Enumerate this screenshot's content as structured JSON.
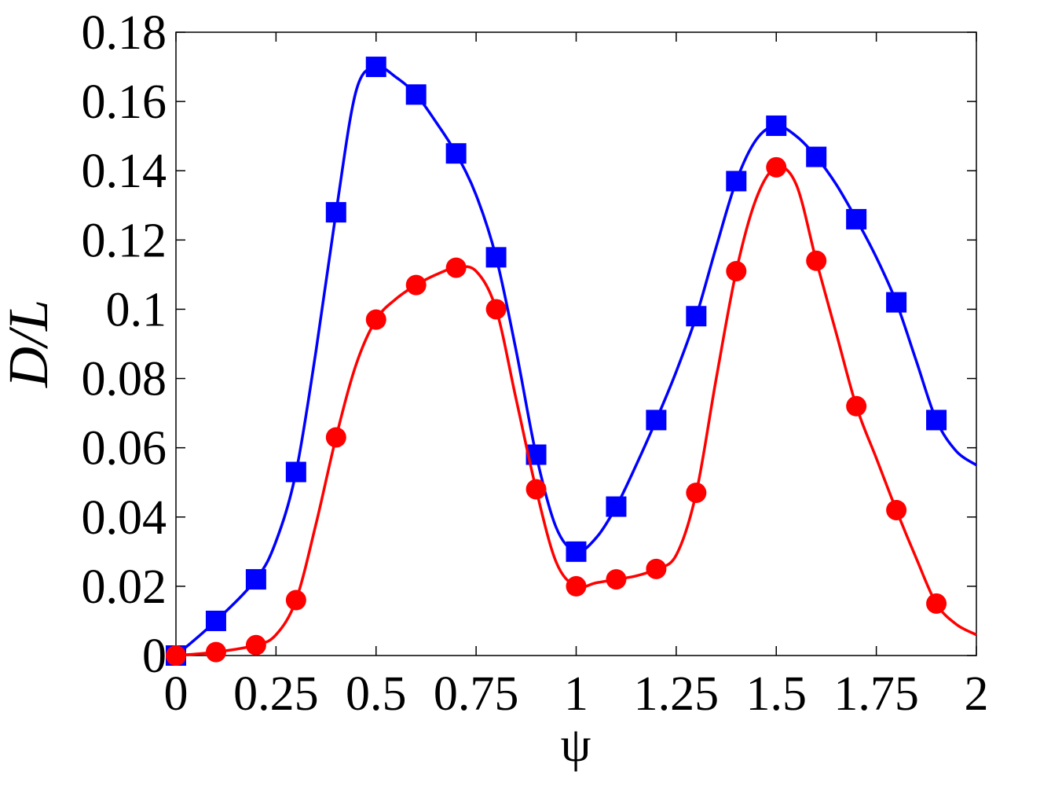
{
  "chart_data": {
    "type": "line",
    "title": "",
    "xlabel": "ψ",
    "ylabel": "D/L",
    "xlim": [
      0,
      2
    ],
    "ylim": [
      0,
      0.18
    ],
    "grid": false,
    "x_ticks": [
      "0",
      "0.25",
      "0.5",
      "0.75",
      "1",
      "1.25",
      "1.5",
      "1.75",
      "2"
    ],
    "y_ticks": [
      "0",
      "0.02",
      "0.04",
      "0.06",
      "0.08",
      "0.1",
      "0.12",
      "0.14",
      "0.16",
      "0.18"
    ],
    "series": [
      {
        "color": "#0000ff",
        "marker": "square",
        "curve": [
          [
            0,
            0
          ],
          [
            0.1,
            0.01
          ],
          [
            0.2,
            0.022
          ],
          [
            0.25,
            0.033
          ],
          [
            0.3,
            0.053
          ],
          [
            0.35,
            0.088
          ],
          [
            0.4,
            0.128
          ],
          [
            0.45,
            0.163
          ],
          [
            0.5,
            0.17
          ],
          [
            0.55,
            0.167
          ],
          [
            0.6,
            0.162
          ],
          [
            0.65,
            0.154
          ],
          [
            0.7,
            0.145
          ],
          [
            0.75,
            0.133
          ],
          [
            0.8,
            0.115
          ],
          [
            0.85,
            0.088
          ],
          [
            0.9,
            0.058
          ],
          [
            0.95,
            0.037
          ],
          [
            1.0,
            0.03
          ],
          [
            1.05,
            0.034
          ],
          [
            1.1,
            0.043
          ],
          [
            1.15,
            0.055
          ],
          [
            1.2,
            0.068
          ],
          [
            1.25,
            0.082
          ],
          [
            1.3,
            0.098
          ],
          [
            1.35,
            0.118
          ],
          [
            1.4,
            0.137
          ],
          [
            1.45,
            0.149
          ],
          [
            1.5,
            0.153
          ],
          [
            1.55,
            0.15
          ],
          [
            1.6,
            0.144
          ],
          [
            1.65,
            0.136
          ],
          [
            1.7,
            0.126
          ],
          [
            1.75,
            0.115
          ],
          [
            1.8,
            0.102
          ],
          [
            1.85,
            0.085
          ],
          [
            1.9,
            0.068
          ],
          [
            1.95,
            0.059
          ],
          [
            2.0,
            0.055
          ]
        ],
        "points": [
          [
            0,
            0
          ],
          [
            0.1,
            0.01
          ],
          [
            0.2,
            0.022
          ],
          [
            0.3,
            0.053
          ],
          [
            0.4,
            0.128
          ],
          [
            0.5,
            0.17
          ],
          [
            0.6,
            0.162
          ],
          [
            0.7,
            0.145
          ],
          [
            0.8,
            0.115
          ],
          [
            0.9,
            0.058
          ],
          [
            1.0,
            0.03
          ],
          [
            1.1,
            0.043
          ],
          [
            1.2,
            0.068
          ],
          [
            1.3,
            0.098
          ],
          [
            1.4,
            0.137
          ],
          [
            1.5,
            0.153
          ],
          [
            1.6,
            0.144
          ],
          [
            1.7,
            0.126
          ],
          [
            1.8,
            0.102
          ],
          [
            1.9,
            0.068
          ]
        ]
      },
      {
        "color": "#ff0000",
        "marker": "circle",
        "curve": [
          [
            0,
            0
          ],
          [
            0.1,
            0.001
          ],
          [
            0.2,
            0.003
          ],
          [
            0.25,
            0.006
          ],
          [
            0.3,
            0.016
          ],
          [
            0.35,
            0.038
          ],
          [
            0.4,
            0.063
          ],
          [
            0.45,
            0.084
          ],
          [
            0.5,
            0.097
          ],
          [
            0.55,
            0.103
          ],
          [
            0.6,
            0.107
          ],
          [
            0.65,
            0.11
          ],
          [
            0.7,
            0.112
          ],
          [
            0.75,
            0.111
          ],
          [
            0.8,
            0.1
          ],
          [
            0.85,
            0.074
          ],
          [
            0.9,
            0.048
          ],
          [
            0.95,
            0.027
          ],
          [
            1.0,
            0.02
          ],
          [
            1.05,
            0.021
          ],
          [
            1.1,
            0.022
          ],
          [
            1.15,
            0.023
          ],
          [
            1.2,
            0.025
          ],
          [
            1.25,
            0.029
          ],
          [
            1.3,
            0.047
          ],
          [
            1.35,
            0.08
          ],
          [
            1.4,
            0.111
          ],
          [
            1.45,
            0.132
          ],
          [
            1.5,
            0.141
          ],
          [
            1.55,
            0.136
          ],
          [
            1.6,
            0.114
          ],
          [
            1.65,
            0.093
          ],
          [
            1.7,
            0.072
          ],
          [
            1.75,
            0.057
          ],
          [
            1.8,
            0.042
          ],
          [
            1.85,
            0.028
          ],
          [
            1.9,
            0.015
          ],
          [
            1.95,
            0.009
          ],
          [
            2.0,
            0.006
          ]
        ],
        "points": [
          [
            0,
            0
          ],
          [
            0.1,
            0.001
          ],
          [
            0.2,
            0.003
          ],
          [
            0.3,
            0.016
          ],
          [
            0.4,
            0.063
          ],
          [
            0.5,
            0.097
          ],
          [
            0.6,
            0.107
          ],
          [
            0.7,
            0.112
          ],
          [
            0.8,
            0.1
          ],
          [
            0.9,
            0.048
          ],
          [
            1.0,
            0.02
          ],
          [
            1.1,
            0.022
          ],
          [
            1.2,
            0.025
          ],
          [
            1.3,
            0.047
          ],
          [
            1.4,
            0.111
          ],
          [
            1.5,
            0.141
          ],
          [
            1.6,
            0.114
          ],
          [
            1.7,
            0.072
          ],
          [
            1.8,
            0.042
          ],
          [
            1.9,
            0.015
          ]
        ]
      }
    ]
  }
}
